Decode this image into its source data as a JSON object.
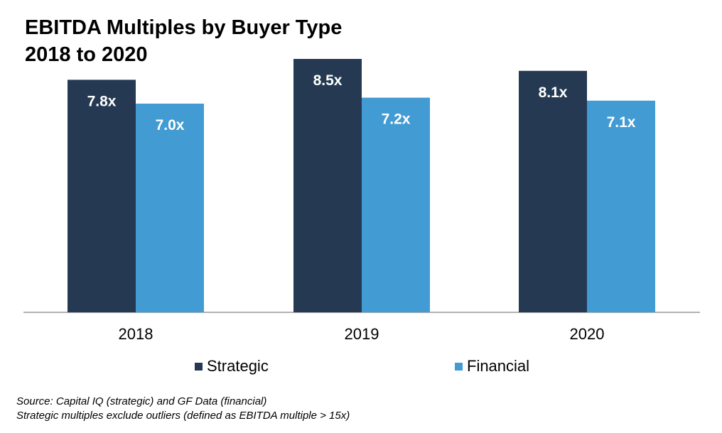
{
  "chart_data": {
    "type": "bar",
    "title": "EBITDA Multiples by Buyer Type",
    "subtitle": "2018 to 2020",
    "categories": [
      "2018",
      "2019",
      "2020"
    ],
    "series": [
      {
        "name": "Strategic",
        "color": "#253a52",
        "values": [
          7.8,
          8.5,
          8.1
        ],
        "labels": [
          "7.8x",
          "8.5x",
          "8.1x"
        ]
      },
      {
        "name": "Financial",
        "color": "#429bd3",
        "values": [
          7.0,
          7.2,
          7.1
        ],
        "labels": [
          "7.0x",
          "7.2x",
          "7.1x"
        ]
      }
    ],
    "ylim": [
      0,
      9
    ],
    "xlabel": "",
    "ylabel": "",
    "grid": false,
    "legend_position": "bottom"
  },
  "footnotes": {
    "source": "Source: Capital IQ (strategic) and GF Data (financial)",
    "note": "Strategic multiples exclude outliers (defined as EBITDA multiple > 15x)"
  },
  "colors": {
    "axis": "#999999"
  }
}
